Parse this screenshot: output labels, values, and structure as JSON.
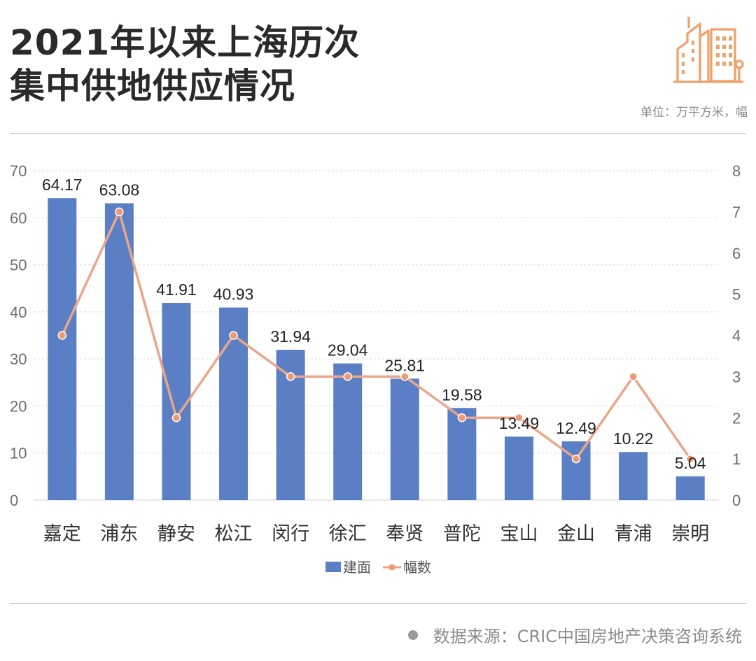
{
  "title": {
    "line1": "2021年以来上海历次",
    "line2": "集中供地供应情况"
  },
  "unit_label": "单位：万平方米，幅",
  "source": "数据来源：CRIC中国房地产决策咨询系统",
  "icons": {
    "logo": "city-buildings-icon",
    "bullet": "dot-icon"
  },
  "colors": {
    "bar": "#5b7fc4",
    "line": "#eba68a",
    "marker": "#eb9a74",
    "accent": "#f0a06a"
  },
  "chart_data": {
    "type": "bar",
    "categories": [
      "嘉定",
      "浦东",
      "静安",
      "松江",
      "闵行",
      "徐汇",
      "奉贤",
      "普陀",
      "宝山",
      "金山",
      "青浦",
      "崇明"
    ],
    "series": [
      {
        "name": "建面",
        "type": "bar",
        "axis": "left",
        "values": [
          64.17,
          63.08,
          41.91,
          40.93,
          31.94,
          29.04,
          25.81,
          19.58,
          13.49,
          12.49,
          10.22,
          5.04
        ],
        "labels": [
          "64.17",
          "63.08",
          "41.91",
          "40.93",
          "31.94",
          "29.04",
          "25.81",
          "19.58",
          "13.49",
          "12.49",
          "10.22",
          "5.04"
        ]
      },
      {
        "name": "幅数",
        "type": "line",
        "axis": "right",
        "values": [
          4,
          7,
          2,
          4,
          3,
          3,
          3,
          2,
          2,
          1,
          3,
          1
        ]
      }
    ],
    "y_left": {
      "min": 0,
      "max": 70,
      "ticks": [
        "0",
        "10",
        "20",
        "30",
        "40",
        "50",
        "60",
        "70"
      ]
    },
    "y_right": {
      "min": 0,
      "max": 8,
      "ticks": [
        "0",
        "1",
        "2",
        "3",
        "4",
        "5",
        "6",
        "7",
        "8"
      ]
    },
    "grid": true,
    "legend_position": "bottom-center"
  }
}
